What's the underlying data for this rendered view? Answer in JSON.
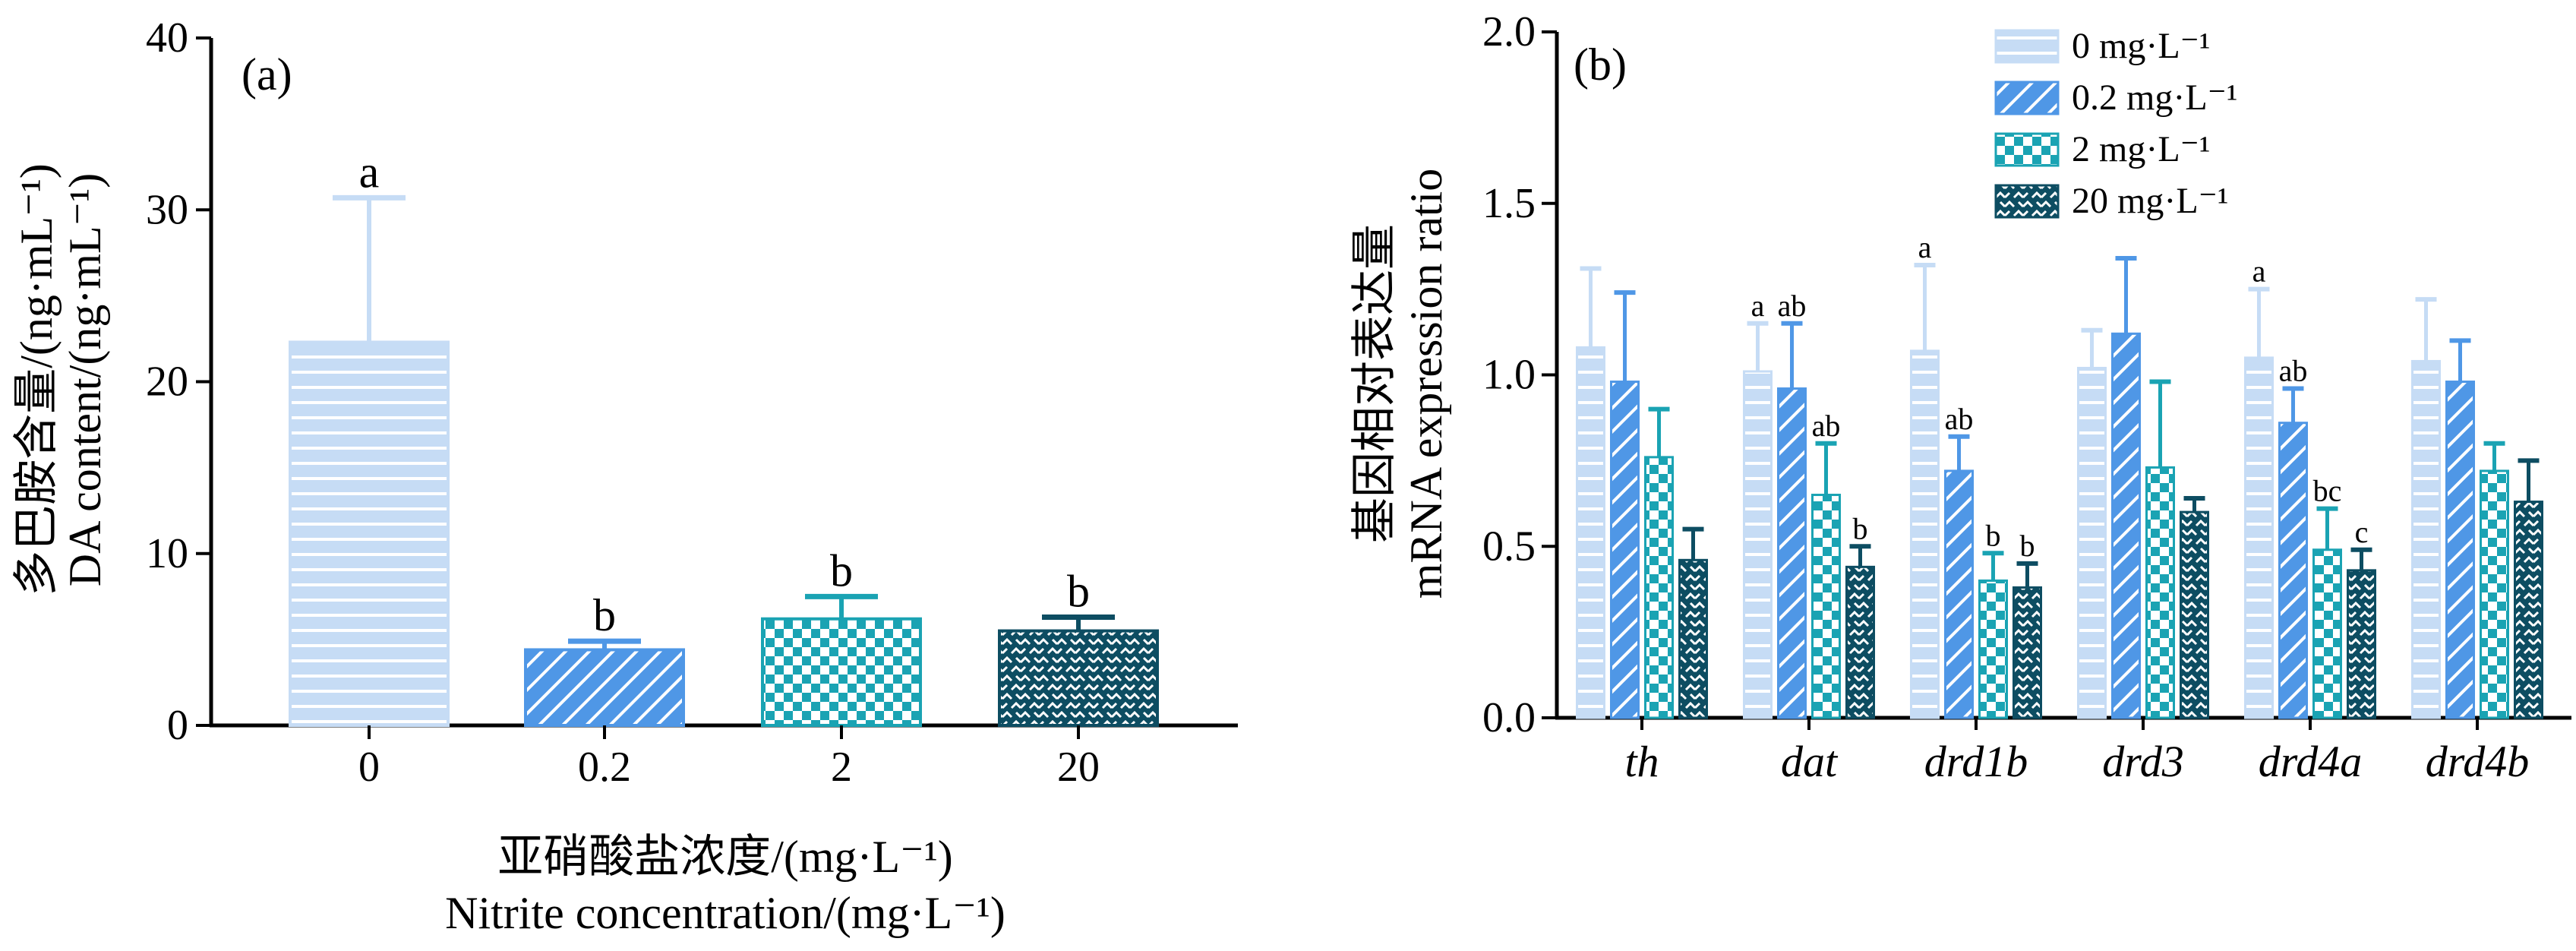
{
  "colors": {
    "series_0": "#c6dcf5",
    "series_0_2": "#4f97e6",
    "series_2": "#1aa3b3",
    "series_20": "#0d4d62",
    "axis": "#000000",
    "error": "same-as-bar"
  },
  "chart_data": [
    {
      "type": "bar",
      "panel_label": "(a)",
      "categories": [
        "0",
        "0.2",
        "2",
        "20"
      ],
      "values": [
        22.3,
        4.4,
        6.2,
        5.5
      ],
      "errors": [
        8.4,
        0.5,
        1.3,
        0.8
      ],
      "significance": [
        "a",
        "b",
        "b",
        "b"
      ],
      "patterns": [
        "horizontal-lines",
        "diagonal-hatch",
        "checkerboard",
        "zigzag-weave"
      ],
      "ylim": [
        0,
        40
      ],
      "yticks": [
        0,
        10,
        20,
        30,
        40
      ],
      "ylabel_cn": "多巴胺含量/(ng·mL⁻¹)",
      "ylabel_en": "DA content/(ng·mL⁻¹)",
      "xlabel_cn": "亚硝酸盐浓度/(mg·L⁻¹)",
      "xlabel_en": "Nitrite concentration/(mg·L⁻¹)",
      "grid": false
    },
    {
      "type": "bar",
      "panel_label": "(b)",
      "categories": [
        "th",
        "dat",
        "drd1b",
        "drd3",
        "drd4a",
        "drd4b"
      ],
      "series": [
        {
          "name": "0 mg·L⁻¹",
          "values": [
            1.08,
            1.01,
            1.07,
            1.02,
            1.05,
            1.04
          ],
          "errors": [
            0.23,
            0.14,
            0.25,
            0.11,
            0.2,
            0.18
          ],
          "significance": [
            "",
            "a",
            "a",
            "",
            "a",
            ""
          ]
        },
        {
          "name": "0.2 mg·L⁻¹",
          "values": [
            0.98,
            0.96,
            0.72,
            1.12,
            0.86,
            0.98
          ],
          "errors": [
            0.26,
            0.19,
            0.1,
            0.22,
            0.1,
            0.12
          ],
          "significance": [
            "",
            "ab",
            "ab",
            "",
            "ab",
            ""
          ]
        },
        {
          "name": "2 mg·L⁻¹",
          "values": [
            0.76,
            0.65,
            0.4,
            0.73,
            0.49,
            0.72
          ],
          "errors": [
            0.14,
            0.15,
            0.08,
            0.25,
            0.12,
            0.08
          ],
          "significance": [
            "",
            "ab",
            "b",
            "",
            "bc",
            ""
          ]
        },
        {
          "name": "20 mg·L⁻¹",
          "values": [
            0.46,
            0.44,
            0.38,
            0.6,
            0.43,
            0.63
          ],
          "errors": [
            0.09,
            0.06,
            0.07,
            0.04,
            0.06,
            0.12
          ],
          "significance": [
            "",
            "b",
            "b",
            "",
            "c",
            ""
          ]
        }
      ],
      "ylim": [
        0,
        2.0
      ],
      "yticks": [
        "0.0",
        "0.5",
        "1.0",
        "1.5",
        "2.0"
      ],
      "ylabel_cn": "基因相对表达量",
      "ylabel_en": "mRNA expression ratio",
      "legend_position": "top-right",
      "grid": false
    }
  ]
}
